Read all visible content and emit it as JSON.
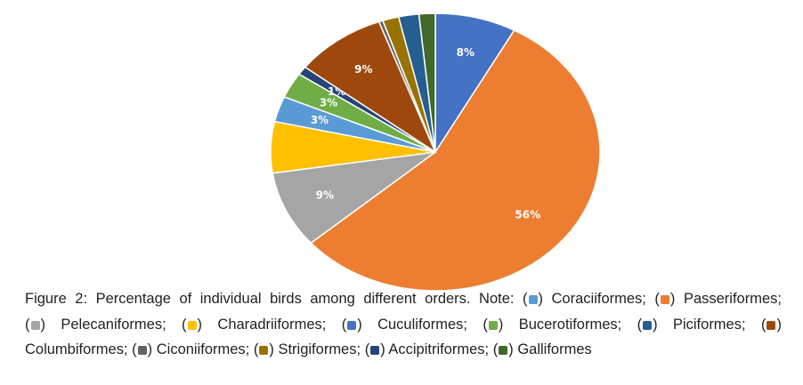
{
  "chart_data": {
    "type": "pie",
    "start_angle_deg": 0,
    "slices": [
      {
        "name": "Coraciiformes",
        "value": 8,
        "label": "8%",
        "color": "#4472c4"
      },
      {
        "name": "Passeriformes",
        "value": 56,
        "label": "56%",
        "color": "#ed7d31"
      },
      {
        "name": "Pelecaniformes",
        "value": 9,
        "label": "9%",
        "color": "#a5a5a5"
      },
      {
        "name": "Charadriiformes",
        "value": 6,
        "label": "",
        "color": "#ffc000"
      },
      {
        "name": "Cuculiformes",
        "value": 3,
        "label": "3%",
        "color": "#5b9bd5"
      },
      {
        "name": "Bucerotiformes",
        "value": 3,
        "label": "3%",
        "color": "#70ad47"
      },
      {
        "name": "Piciformes",
        "value": 1,
        "label": "1%",
        "color": "#264478"
      },
      {
        "name": "Columbiformes",
        "value": 9,
        "label": "9%",
        "color": "#9e480e"
      },
      {
        "name": "Ciconiiformes",
        "value": 0.4,
        "label": "",
        "color": "#636363"
      },
      {
        "name": "Strigiformes",
        "value": 1.6,
        "label": "",
        "color": "#997300"
      },
      {
        "name": "Accipitriformes",
        "value": 2,
        "label": "",
        "color": "#255e91"
      },
      {
        "name": "Galliformes",
        "value": 1.6,
        "label": "",
        "color": "#43682b"
      }
    ]
  },
  "caption": {
    "figure_label": "Figure 2",
    "figure_text": ": Percentage of individual birds among different orders. ",
    "note_label": "Note:",
    "legend": [
      {
        "name": "Coraciiformes",
        "color": "#5b9bd5",
        "sep": ";"
      },
      {
        "name": "Passeriformes",
        "color": "#ed7d31",
        "sep": ";"
      },
      {
        "name": "Pelecaniformes",
        "color": "#a5a5a5",
        "sep": ";"
      },
      {
        "name": "Charadriiformes",
        "color": "#ffc000",
        "sep": ";"
      },
      {
        "name": "Cuculiformes",
        "color": "#4472c4",
        "sep": ";"
      },
      {
        "name": "Bucerotiformes",
        "color": "#70ad47",
        "sep": ";"
      },
      {
        "name": "Piciformes",
        "color": "#255e91",
        "sep": ";"
      },
      {
        "name": "Columbiformes",
        "color": "#9e480e",
        "sep": ";"
      },
      {
        "name": "Ciconiiformes",
        "color": "#636363",
        "sep": ";"
      },
      {
        "name": "Strigiformes",
        "color": "#997300",
        "sep": ";"
      },
      {
        "name": "Accipitriformes",
        "color": "#264478",
        "sep": ";"
      },
      {
        "name": "Galliformes",
        "color": "#43682b",
        "sep": ""
      }
    ]
  }
}
